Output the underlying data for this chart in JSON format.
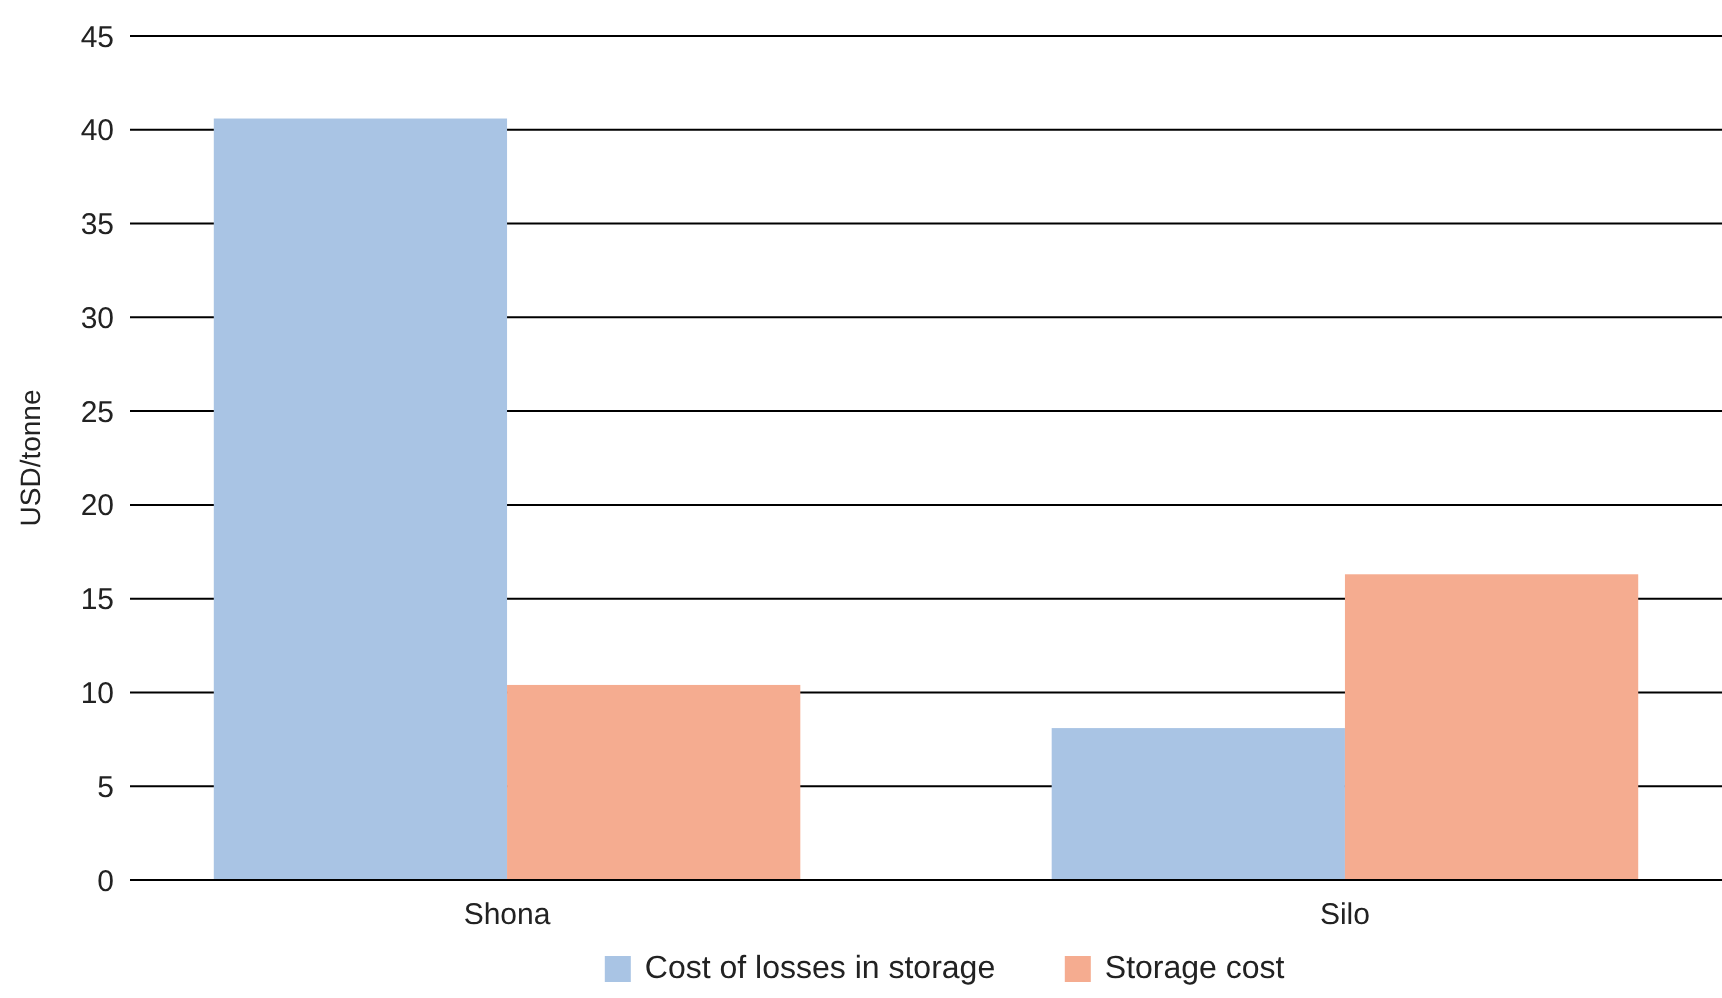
{
  "chart_data": {
    "type": "bar",
    "ylabel": "USD/tonne",
    "categories": [
      "Shona",
      "Silo"
    ],
    "series": [
      {
        "name": "Cost of losses in storage",
        "color": "#a9c4e4",
        "values": [
          40.6,
          8.1
        ]
      },
      {
        "name": "Storage cost",
        "color": "#f5ac90",
        "values": [
          10.4,
          16.3
        ]
      }
    ],
    "ylim": [
      0,
      45
    ],
    "yticks": [
      0,
      5,
      10,
      15,
      20,
      25,
      30,
      35,
      40,
      45
    ],
    "grid": "y",
    "legend": "bottom"
  }
}
